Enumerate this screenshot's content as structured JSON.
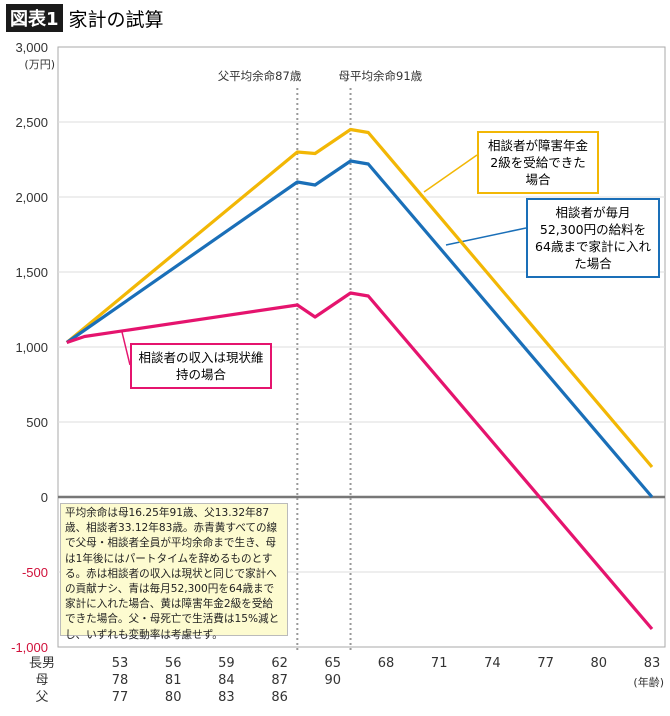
{
  "header": {
    "badge": "図表1",
    "title": "家計の試算"
  },
  "chart_data": {
    "type": "line",
    "title": "家計の試算",
    "ylabel": "(万円)",
    "xlabel": "(年齢)",
    "ylim": [
      -1000,
      3000
    ],
    "yticks": [
      3000,
      2500,
      2000,
      1500,
      1000,
      500,
      0,
      -500,
      -1000
    ],
    "ytick_labels": [
      "3,000",
      "2,500",
      "2,000",
      "1,500",
      "1,000",
      "500",
      "0",
      "-500",
      "-1,000"
    ],
    "xlim": [
      50,
      83
    ],
    "grid": true,
    "age_rows": [
      {
        "label": "長男",
        "values": [
          "53",
          "56",
          "59",
          "62",
          "65",
          "68",
          "71",
          "74",
          "77",
          "80",
          "83"
        ]
      },
      {
        "label": "母",
        "values": [
          "78",
          "81",
          "84",
          "87",
          "90"
        ]
      },
      {
        "label": "父",
        "values": [
          "77",
          "80",
          "83",
          "86"
        ]
      }
    ],
    "xtick_ages": [
      53,
      56,
      59,
      62,
      65,
      68,
      71,
      74,
      77,
      80,
      83
    ],
    "vlines": [
      {
        "x": 63,
        "label": "父平均余命87歳"
      },
      {
        "x": 66,
        "label": "母平均余命91歳"
      }
    ],
    "series": [
      {
        "name": "相談者が障害年金2級を受給できた場合",
        "color": "#f2b705",
        "x": [
          50,
          63,
          64,
          66,
          67,
          83
        ],
        "y": [
          1030,
          2300,
          2290,
          2450,
          2430,
          200
        ]
      },
      {
        "name": "相談者が毎月52,300円の給料を64歳まで家計に入れた場合",
        "color": "#1a6fb8",
        "x": [
          50,
          63,
          64,
          66,
          67,
          83
        ],
        "y": [
          1030,
          2100,
          2080,
          2240,
          2220,
          0
        ]
      },
      {
        "name": "相談者の収入は現状維持の場合",
        "color": "#e5146e",
        "x": [
          50,
          51,
          63,
          64,
          66,
          67,
          83
        ],
        "y": [
          1030,
          1070,
          1280,
          1200,
          1360,
          1340,
          -880
        ]
      }
    ],
    "callouts": {
      "yellow": "相談者が障害年金2級を受給できた場合",
      "blue": "相談者が毎月52,300円の給料を64歳まで家計に入れた場合",
      "red": "相談者の収入は現状維持の場合"
    },
    "note": "平均余命は母16.25年91歳、父13.32年87歳、相談者33.12年83歳。赤青黄すべての線で父母・相談者全員が平均余命まで生き、母は1年後にはパートタイムを辞めるものとする。赤は相談者の収入は現状と同じで家計への貢献ナシ、青は毎月52,300円を64歳まで家計に入れた場合、黄は障害年金2級を受給できた場合。父・母死亡で生活費は15%減とし、いずれも変動率は考慮せず。"
  }
}
